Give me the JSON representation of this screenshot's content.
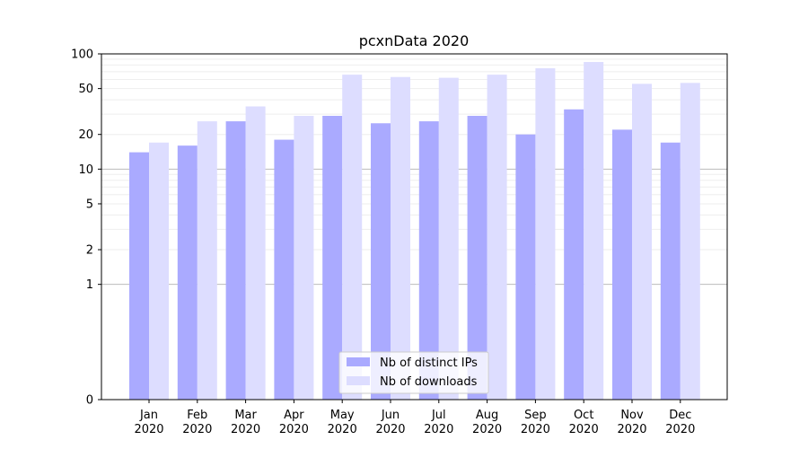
{
  "chart_data": {
    "type": "bar",
    "title": "pcxnData 2020",
    "xlabel": "",
    "ylabel": "",
    "categories": [
      [
        "Jan",
        "2020"
      ],
      [
        "Feb",
        "2020"
      ],
      [
        "Mar",
        "2020"
      ],
      [
        "Apr",
        "2020"
      ],
      [
        "May",
        "2020"
      ],
      [
        "Jun",
        "2020"
      ],
      [
        "Jul",
        "2020"
      ],
      [
        "Aug",
        "2020"
      ],
      [
        "Sep",
        "2020"
      ],
      [
        "Oct",
        "2020"
      ],
      [
        "Nov",
        "2020"
      ],
      [
        "Dec",
        "2020"
      ]
    ],
    "series": [
      {
        "name": "Nb of distinct IPs",
        "color": "#aaaaff",
        "values": [
          14,
          16,
          26,
          18,
          29,
          25,
          26,
          29,
          20,
          33,
          22,
          17
        ]
      },
      {
        "name": "Nb of downloads",
        "color": "#ddddff",
        "values": [
          17,
          26,
          35,
          29,
          66,
          63,
          62,
          66,
          75,
          85,
          55,
          56
        ]
      }
    ],
    "y_scale": "symlog",
    "ylim": [
      0,
      100
    ],
    "yticks": [
      0,
      1,
      2,
      5,
      10,
      20,
      50,
      100
    ],
    "ytick_labels": [
      "0",
      "1",
      "2",
      "5",
      "10",
      "20",
      "50",
      "100"
    ],
    "grid": true,
    "legend_position": "bottom-center"
  }
}
